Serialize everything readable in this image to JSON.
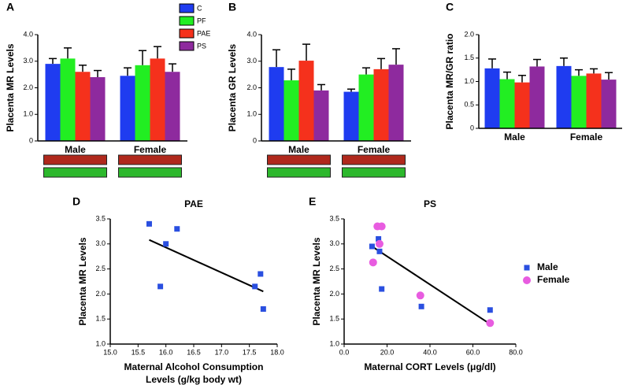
{
  "chart_data": [
    {
      "type": "bar",
      "panel_label": "A",
      "ylabel": "Placenta MR Levels",
      "categories": [
        "Male",
        "Female"
      ],
      "series": [
        {
          "name": "C",
          "color": "#1f3cf0",
          "values": [
            2.9,
            2.45
          ],
          "errors": [
            0.2,
            0.3
          ]
        },
        {
          "name": "PF",
          "color": "#22ee22",
          "values": [
            3.1,
            2.85
          ],
          "errors": [
            0.4,
            0.55
          ]
        },
        {
          "name": "PAE",
          "color": "#f5311c",
          "values": [
            2.6,
            3.1
          ],
          "errors": [
            0.25,
            0.45
          ]
        },
        {
          "name": "PS",
          "color": "#8e2a9e",
          "values": [
            2.4,
            2.6
          ],
          "errors": [
            0.25,
            0.3
          ]
        }
      ],
      "legend": true,
      "ylim": [
        0,
        4
      ],
      "yticks": [
        0,
        {
          "value": 1,
          "label": "1.0"
        },
        {
          "value": 2,
          "label": "2.0"
        },
        {
          "value": 3,
          "label": "3.0"
        },
        {
          "value": 4,
          "label": "4.0"
        }
      ]
    },
    {
      "type": "bar",
      "panel_label": "B",
      "ylabel": "Placenta GR Levels",
      "categories": [
        "Male",
        "Female"
      ],
      "series": [
        {
          "color": "#1f3cf0",
          "values": [
            2.78,
            1.85
          ],
          "errors": [
            0.65,
            0.1
          ]
        },
        {
          "color": "#22ee22",
          "values": [
            2.28,
            2.5
          ],
          "errors": [
            0.42,
            0.25
          ]
        },
        {
          "color": "#f5311c",
          "values": [
            3.02,
            2.7
          ],
          "errors": [
            0.62,
            0.4
          ]
        },
        {
          "color": "#8e2a9e",
          "values": [
            1.9,
            2.87
          ],
          "errors": [
            0.22,
            0.6
          ]
        }
      ],
      "ylim": [
        0,
        4
      ],
      "yticks": [
        0,
        {
          "value": 1,
          "label": "1.0"
        },
        {
          "value": 2,
          "label": "2.0"
        },
        {
          "value": 3,
          "label": "3.0"
        },
        {
          "value": 4,
          "label": "4.0"
        }
      ]
    },
    {
      "type": "bar",
      "panel_label": "C",
      "ylabel": "Placenta MR/GR ratio",
      "categories": [
        "Male",
        "Female"
      ],
      "series": [
        {
          "color": "#1f3cf0",
          "values": [
            1.28,
            1.33
          ],
          "errors": [
            0.2,
            0.17
          ]
        },
        {
          "color": "#22ee22",
          "values": [
            1.05,
            1.12
          ],
          "errors": [
            0.15,
            0.13
          ]
        },
        {
          "color": "#f5311c",
          "values": [
            0.98,
            1.17
          ],
          "errors": [
            0.15,
            0.1
          ]
        },
        {
          "color": "#8e2a9e",
          "values": [
            1.32,
            1.04
          ],
          "errors": [
            0.15,
            0.15
          ]
        }
      ],
      "ylim": [
        0,
        2
      ],
      "yticks": [
        0,
        0.5,
        {
          "value": 1,
          "label": "1.0"
        },
        1.5,
        {
          "value": 2,
          "label": "2.0"
        }
      ]
    },
    {
      "type": "scatter",
      "panel_label": "D",
      "title": "PAE",
      "ylabel": "Placenta MR Levels",
      "xlabel": [
        "Maternal Alcohol Consumption",
        "Levels (g/kg body wt)"
      ],
      "series": [
        {
          "color": "#2a4fe0",
          "marker": "square",
          "x": [
            15.7,
            15.9,
            16.0,
            16.2,
            17.6,
            17.7,
            17.75
          ],
          "y": [
            3.4,
            2.15,
            3.0,
            3.3,
            2.15,
            2.4,
            1.7
          ]
        }
      ],
      "fit": {
        "x": [
          15.7,
          17.75
        ],
        "y": [
          3.08,
          2.05
        ]
      },
      "xlim": [
        15,
        18
      ],
      "xticks": [
        {
          "value": 15,
          "label": "15.0"
        },
        15.5,
        {
          "value": 16,
          "label": "16.0"
        },
        16.5,
        {
          "value": 17,
          "label": "17.0"
        },
        17.5,
        {
          "value": 18,
          "label": "18.0"
        }
      ],
      "ylim": [
        1,
        3.5
      ],
      "yticks": [
        {
          "value": 1,
          "label": "1.0"
        },
        1.5,
        {
          "value": 2,
          "label": "2.0"
        },
        2.5,
        {
          "value": 3,
          "label": "3.0"
        },
        3.5
      ]
    },
    {
      "type": "scatter",
      "panel_label": "E",
      "title": "PS",
      "ylabel": "Placenta MR Levels",
      "xlabel": "Maternal CORT Levels (μg/dl)",
      "series": [
        {
          "name": "Male",
          "color": "#2a4fe0",
          "marker": "square",
          "x": [
            13,
            16,
            16.5,
            17.5,
            36,
            68
          ],
          "y": [
            2.95,
            3.1,
            2.85,
            2.1,
            1.75,
            1.68
          ]
        },
        {
          "name": "Female",
          "color": "#e85ce0",
          "marker": "circle",
          "x": [
            13.5,
            15.5,
            16.5,
            17.5,
            35.5,
            68
          ],
          "y": [
            2.63,
            3.35,
            3.0,
            3.35,
            1.97,
            1.42
          ]
        }
      ],
      "fit": {
        "x": [
          13,
          68
        ],
        "y": [
          2.95,
          1.4
        ]
      },
      "legend": true,
      "xlim": [
        0,
        80
      ],
      "xticks": [
        {
          "value": 0,
          "label": "0.0"
        },
        {
          "value": 20,
          "label": "20.0"
        },
        {
          "value": 40,
          "label": "40.0"
        },
        {
          "value": 60,
          "label": "60.0"
        },
        {
          "value": 80,
          "label": "80.0"
        }
      ],
      "ylim": [
        1,
        3.5
      ],
      "yticks": [
        {
          "value": 1,
          "label": "1.0"
        },
        1.5,
        {
          "value": 2,
          "label": "2.0"
        },
        2.5,
        {
          "value": 3,
          "label": "3.0"
        },
        3.5
      ]
    }
  ]
}
